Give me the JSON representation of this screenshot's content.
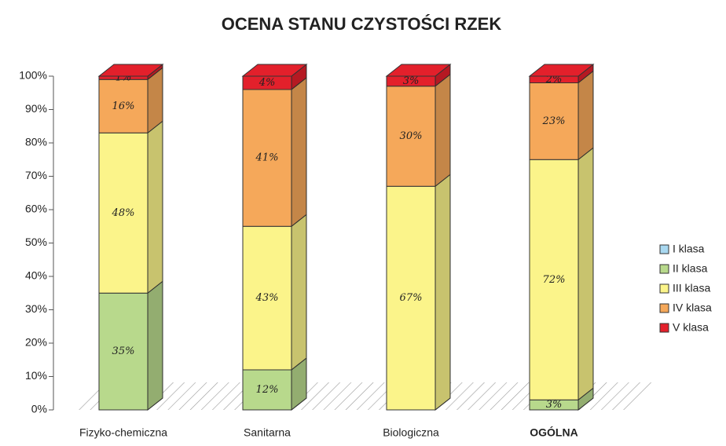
{
  "chart_data": {
    "type": "bar",
    "stacked": true,
    "title": "OCENA STANU CZYSTOŚCI RZEK",
    "categories": [
      "Fizyko-chemiczna",
      "Sanitarna",
      "Biologiczna",
      "OGÓLNA"
    ],
    "series": [
      {
        "name": "I klasa",
        "color": "#a9d8f0",
        "values": [
          0,
          0,
          0,
          0
        ]
      },
      {
        "name": "II klasa",
        "color": "#b8d98c",
        "values": [
          35,
          12,
          0,
          3
        ],
        "value_labels": [
          "35%",
          "12%",
          null,
          "3%"
        ]
      },
      {
        "name": "III klasa",
        "color": "#fbf48a",
        "values": [
          48,
          43,
          67,
          72
        ],
        "value_labels": [
          "48%",
          "43%",
          "67%",
          "72%"
        ]
      },
      {
        "name": "IV klasa",
        "color": "#f5a85a",
        "values": [
          16,
          41,
          30,
          23
        ],
        "value_labels": [
          "16%",
          "41%",
          "30%",
          "23%"
        ]
      },
      {
        "name": "V klasa",
        "color": "#e3202b",
        "values": [
          1,
          4,
          3,
          2
        ],
        "value_labels": [
          "1%",
          "4%",
          "3%",
          "2%"
        ]
      }
    ],
    "ylim": [
      0,
      100
    ],
    "yticks": [
      {
        "value": 0,
        "label": "0%"
      },
      {
        "value": 10,
        "label": "10%"
      },
      {
        "value": 20,
        "label": "20%"
      },
      {
        "value": 30,
        "label": "30%"
      },
      {
        "value": 40,
        "label": "40%"
      },
      {
        "value": 50,
        "label": "50%"
      },
      {
        "value": 60,
        "label": "60%"
      },
      {
        "value": 70,
        "label": "70%"
      },
      {
        "value": 80,
        "label": "80%"
      },
      {
        "value": 90,
        "label": "90%"
      },
      {
        "value": 100,
        "label": "100%"
      }
    ],
    "legend": "right"
  }
}
